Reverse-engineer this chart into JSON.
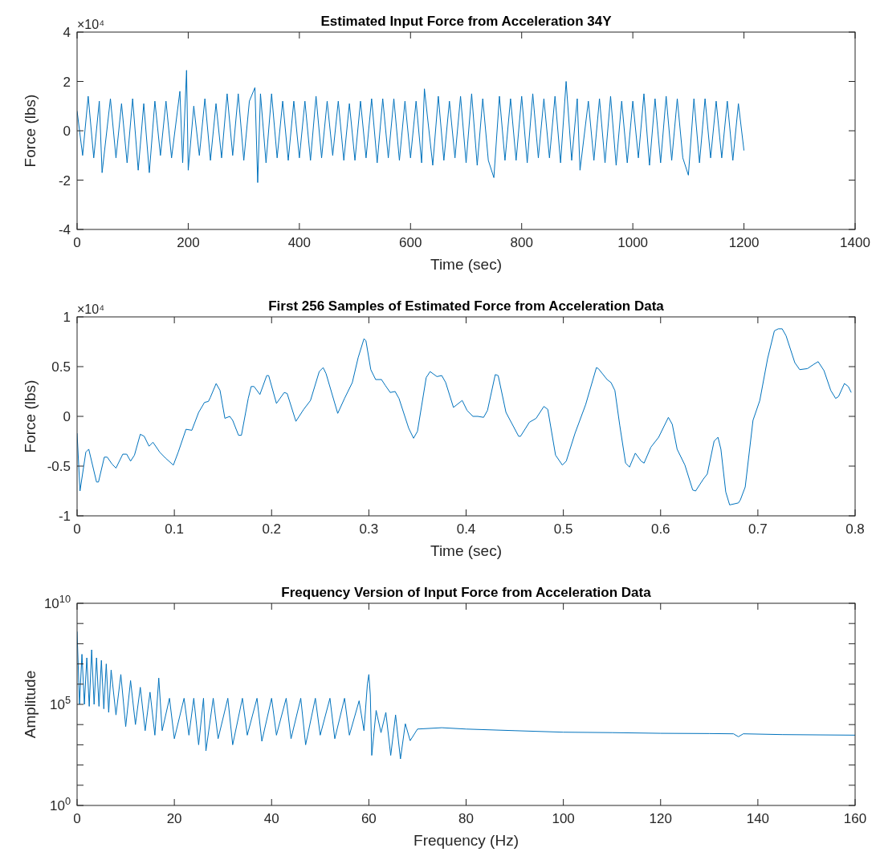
{
  "chart_data": [
    {
      "type": "line",
      "title": "Estimated Input Force from Acceleration 34Y",
      "xlabel": "Time (sec)",
      "ylabel": "Force (lbs)",
      "annotations": [
        "×10⁴"
      ],
      "xlim": [
        0,
        1400
      ],
      "xticks": [
        0,
        200,
        400,
        600,
        800,
        1000,
        1200,
        1400
      ],
      "ylim": [
        -4,
        4
      ],
      "yticks": [
        -4,
        -2,
        0,
        2,
        4
      ],
      "x": [
        0,
        10,
        20,
        30,
        40,
        45,
        60,
        70,
        80,
        90,
        100,
        110,
        120,
        130,
        140,
        150,
        160,
        170,
        185,
        190,
        197,
        200,
        210,
        220,
        230,
        240,
        250,
        260,
        270,
        280,
        290,
        300,
        310,
        320,
        325,
        330,
        340,
        350,
        360,
        370,
        380,
        390,
        400,
        410,
        420,
        430,
        440,
        450,
        460,
        470,
        480,
        490,
        500,
        510,
        520,
        530,
        540,
        550,
        560,
        570,
        580,
        590,
        600,
        610,
        620,
        625,
        640,
        650,
        660,
        670,
        680,
        690,
        700,
        710,
        720,
        730,
        740,
        750,
        760,
        770,
        780,
        790,
        800,
        810,
        820,
        830,
        840,
        850,
        860,
        870,
        880,
        890,
        900,
        905,
        920,
        930,
        940,
        950,
        960,
        970,
        980,
        990,
        1000,
        1010,
        1020,
        1030,
        1040,
        1050,
        1060,
        1070,
        1080,
        1090,
        1100,
        1110,
        1120,
        1130,
        1140,
        1150,
        1160,
        1170,
        1180,
        1190,
        1200
      ],
      "series": [
        {
          "color": "#0072bd",
          "values": [
            0.8,
            -1.0,
            1.4,
            -1.1,
            1.2,
            -1.7,
            1.3,
            -1.1,
            1.1,
            -1.3,
            1.3,
            -1.6,
            1.1,
            -1.7,
            1.2,
            -1.0,
            1.2,
            -1.1,
            1.6,
            -1.3,
            2.45,
            -1.6,
            1.0,
            -1.0,
            1.3,
            -1.2,
            1.1,
            -1.1,
            1.5,
            -1.0,
            1.5,
            -1.2,
            1.2,
            1.75,
            -2.1,
            1.5,
            -1.3,
            1.5,
            -1.1,
            1.2,
            -1.2,
            1.2,
            -1.1,
            1.2,
            -1.2,
            1.4,
            -1.1,
            1.2,
            -1.0,
            1.2,
            -1.2,
            1.1,
            -1.2,
            1.2,
            -1.1,
            1.3,
            -1.3,
            1.3,
            -1.1,
            1.3,
            -1.2,
            1.2,
            -1.1,
            1.2,
            -1.3,
            1.7,
            -1.4,
            1.4,
            -1.2,
            1.2,
            -1.1,
            1.4,
            -1.3,
            1.5,
            -1.4,
            1.3,
            -1.2,
            -1.9,
            1.4,
            -1.2,
            1.3,
            -1.2,
            1.4,
            -1.3,
            1.5,
            -1.1,
            1.3,
            -1.1,
            1.4,
            -1.3,
            2.0,
            -1.2,
            1.3,
            -1.6,
            1.2,
            -1.2,
            1.3,
            -1.3,
            1.4,
            -1.4,
            1.2,
            -1.3,
            1.2,
            -1.1,
            1.5,
            -1.4,
            1.3,
            -1.3,
            1.4,
            -1.2,
            1.3,
            -1.1,
            -1.8,
            1.3,
            -1.3,
            1.3,
            -1.1,
            1.2,
            -1.1,
            1.2,
            -1.2,
            1.1,
            -0.8
          ]
        }
      ]
    },
    {
      "type": "line",
      "title": "First 256 Samples of Estimated Force from Acceleration Data",
      "xlabel": "Time (sec)",
      "ylabel": "Force (lbs)",
      "annotations": [
        "×10⁴"
      ],
      "xlim": [
        0,
        0.8
      ],
      "xticks": [
        0,
        0.1,
        0.2,
        0.3,
        0.4,
        0.5,
        0.6,
        0.7,
        0.8
      ],
      "ylim": [
        -1,
        1
      ],
      "yticks": [
        -1,
        -0.5,
        0,
        0.5,
        1
      ],
      "x": [
        0,
        0.003,
        0.009,
        0.012,
        0.02,
        0.022,
        0.028,
        0.031,
        0.036,
        0.04,
        0.047,
        0.051,
        0.055,
        0.059,
        0.065,
        0.069,
        0.074,
        0.078,
        0.085,
        0.091,
        0.099,
        0.104,
        0.112,
        0.118,
        0.125,
        0.131,
        0.135,
        0.137,
        0.143,
        0.147,
        0.152,
        0.157,
        0.16,
        0.166,
        0.169,
        0.176,
        0.179,
        0.182,
        0.188,
        0.195,
        0.197,
        0.205,
        0.213,
        0.216,
        0.225,
        0.233,
        0.24,
        0.249,
        0.253,
        0.256,
        0.268,
        0.275,
        0.283,
        0.289,
        0.295,
        0.297,
        0.302,
        0.307,
        0.313,
        0.317,
        0.322,
        0.327,
        0.331,
        0.341,
        0.346,
        0.35,
        0.359,
        0.363,
        0.37,
        0.375,
        0.379,
        0.387,
        0.396,
        0.401,
        0.407,
        0.412,
        0.418,
        0.422,
        0.43,
        0.433,
        0.441,
        0.454,
        0.456,
        0.465,
        0.472,
        0.48,
        0.484,
        0.492,
        0.499,
        0.503,
        0.512,
        0.523,
        0.534,
        0.536,
        0.545,
        0.549,
        0.553,
        0.558,
        0.564,
        0.568,
        0.574,
        0.58,
        0.583,
        0.59,
        0.598,
        0.608,
        0.612,
        0.617,
        0.625,
        0.633,
        0.636,
        0.644,
        0.648,
        0.655,
        0.659,
        0.662,
        0.667,
        0.671,
        0.68,
        0.682,
        0.687,
        0.695,
        0.702,
        0.71,
        0.717,
        0.721,
        0.725,
        0.729,
        0.738,
        0.743,
        0.751,
        0.757,
        0.762,
        0.768,
        0.775,
        0.78,
        0.783,
        0.789,
        0.793,
        0.796
      ],
      "series": [
        {
          "color": "#0072bd",
          "values": [
            -0.17,
            -0.75,
            -0.36,
            -0.33,
            -0.66,
            -0.66,
            -0.41,
            -0.41,
            -0.48,
            -0.52,
            -0.38,
            -0.38,
            -0.45,
            -0.39,
            -0.18,
            -0.2,
            -0.3,
            -0.26,
            -0.36,
            -0.42,
            -0.49,
            -0.36,
            -0.13,
            -0.14,
            0.04,
            0.14,
            0.15,
            0.19,
            0.33,
            0.26,
            -0.02,
            0,
            -0.04,
            -0.19,
            -0.19,
            0.18,
            0.3,
            0.3,
            0.22,
            0.41,
            0.41,
            0.13,
            0.24,
            0.23,
            -0.05,
            0.07,
            0.16,
            0.45,
            0.49,
            0.43,
            0.03,
            0.18,
            0.34,
            0.59,
            0.78,
            0.76,
            0.47,
            0.37,
            0.37,
            0.31,
            0.24,
            0.25,
            0.18,
            -0.12,
            -0.22,
            -0.15,
            0.39,
            0.45,
            0.4,
            0.41,
            0.34,
            0.09,
            0.16,
            0.06,
            0,
            0,
            -0.01,
            0.06,
            0.42,
            0.41,
            0.04,
            -0.2,
            -0.2,
            -0.06,
            -0.02,
            0.1,
            0.07,
            -0.39,
            -0.49,
            -0.45,
            -0.17,
            0.12,
            0.49,
            0.48,
            0.37,
            0.34,
            0.26,
            -0.09,
            -0.47,
            -0.51,
            -0.37,
            -0.45,
            -0.47,
            -0.31,
            -0.21,
            -0.01,
            -0.08,
            -0.33,
            -0.49,
            -0.74,
            -0.75,
            -0.63,
            -0.58,
            -0.25,
            -0.21,
            -0.33,
            -0.76,
            -0.89,
            -0.87,
            -0.84,
            -0.71,
            -0.04,
            0.16,
            0.58,
            0.86,
            0.88,
            0.88,
            0.81,
            0.54,
            0.47,
            0.48,
            0.52,
            0.55,
            0.46,
            0.26,
            0.18,
            0.2,
            0.33,
            0.3,
            0.24
          ]
        }
      ]
    },
    {
      "type": "line",
      "title": "Frequency Version of Input Force from Acceleration Data",
      "xlabel": "Frequency (Hz)",
      "ylabel": "Amplitude",
      "log": "y",
      "xlim": [
        0,
        160
      ],
      "xticks": [
        0,
        20,
        40,
        60,
        80,
        100,
        120,
        140,
        160
      ],
      "ylim": [
        1,
        10000000000
      ],
      "yticks": [
        {
          "value": 1,
          "label": "10$^{0}$"
        },
        {
          "value": 10,
          "label": null
        },
        {
          "value": 100,
          "label": null
        },
        {
          "value": 1000,
          "label": null
        },
        {
          "value": 10000,
          "label": null
        },
        {
          "value": 100000,
          "label": "10$^{5}$"
        },
        {
          "value": 1000000,
          "label": null
        },
        {
          "value": 10000000,
          "label": null
        },
        {
          "value": 100000000,
          "label": null
        },
        {
          "value": 1000000000,
          "label": null
        },
        {
          "value": 10000000000,
          "label": "10$^{10}$"
        }
      ],
      "x": [
        0,
        0.5,
        1,
        1.5,
        2,
        2.5,
        3,
        3.5,
        4,
        4.5,
        5,
        5.5,
        6,
        6.5,
        7,
        8,
        9,
        10,
        11,
        12,
        13,
        14,
        15,
        16,
        16.8,
        17.5,
        19,
        20,
        22,
        23,
        24,
        25,
        26,
        26.5,
        28,
        29,
        31,
        32,
        34,
        35,
        37,
        38,
        40,
        41,
        43,
        44,
        46,
        47,
        49,
        50,
        52,
        53,
        55,
        56,
        58,
        59,
        59.7,
        60,
        60.3,
        60.6,
        61.5,
        62.5,
        63.5,
        64.5,
        65.5,
        66.5,
        67.5,
        68.5,
        70,
        75,
        80,
        90,
        100,
        110,
        120,
        130,
        135,
        136,
        137,
        145,
        160
      ],
      "series": [
        {
          "color": "#0072bd",
          "values": [
            400000000.0,
            100000.0,
            30000000.0,
            100000.0,
            20000000.0,
            80000.0,
            50000000.0,
            100000.0,
            20000000.0,
            80000.0,
            15000000.0,
            60000.0,
            10000000.0,
            40000.0,
            5000000.0,
            30000.0,
            3000000.0,
            8000.0,
            1500000.0,
            10000.0,
            700000.0,
            5000.0,
            400000.0,
            3000.0,
            2000000.0,
            5000.0,
            200000.0,
            2000.0,
            200000.0,
            3000.0,
            200000.0,
            1000.0,
            200000.0,
            500.0,
            200000.0,
            2000.0,
            200000.0,
            1000.0,
            200000.0,
            3000.0,
            200000.0,
            1500.0,
            200000.0,
            3000.0,
            200000.0,
            2000.0,
            200000.0,
            1000.0,
            200000.0,
            3000.0,
            200000.0,
            2000.0,
            200000.0,
            3000.0,
            150000.0,
            5000.0,
            1000000.0,
            3000000.0,
            300000.0,
            300.0,
            50000.0,
            4000.0,
            40000.0,
            300.0,
            30000.0,
            200.0,
            11000.0,
            1600.0,
            6000.0,
            7000.0,
            6000.0,
            5000.0,
            4200.0,
            4000.0,
            3700.0,
            3600.0,
            3500.0,
            2500.0,
            3500.0,
            3200.0,
            3000.0
          ]
        }
      ]
    }
  ]
}
